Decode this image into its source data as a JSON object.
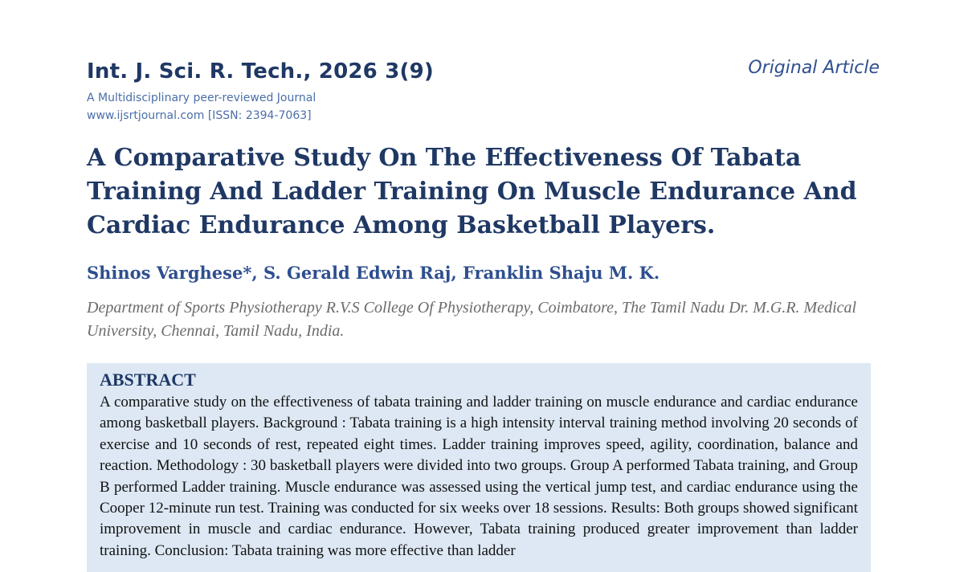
{
  "header": {
    "journal_title": "Int. J. Sci. R. Tech., 2026 3(9)",
    "journal_subtitle": "A Multidisciplinary peer-reviewed Journal",
    "journal_url_issn": "www.ijsrtjournal.com [ISSN: 2394-7063]",
    "article_type": "Original Article"
  },
  "paper": {
    "title": "A Comparative Study On The Effectiveness Of Tabata Training And Ladder Training On Muscle Endurance And Cardiac Endurance Among Basketball Players.",
    "authors": "Shinos Varghese*, S. Gerald Edwin Raj, Franklin Shaju M. K.",
    "affiliation": "Department of Sports Physiotherapy R.V.S College Of Physiotherapy, Coimbatore, The Tamil Nadu Dr. M.G.R. Medical University, Chennai, Tamil Nadu, India."
  },
  "abstract": {
    "heading": "ABSTRACT",
    "text": "A comparative study on the effectiveness of tabata training and ladder training on muscle endurance and cardiac endurance among basketball players. Background : Tabata training is a high intensity interval training method involving 20 seconds of exercise and 10 seconds of rest, repeated eight times. Ladder training improves speed, agility, coordination, balance and reaction. Methodology : 30 basketball players were divided into two groups. Group A performed Tabata training, and Group B performed Ladder training. Muscle endurance was assessed using the vertical jump test, and cardiac endurance using the Cooper 12-minute run test. Training was conducted for six weeks over 18 sessions. Results: Both groups showed significant improvement in muscle and cardiac endurance. However, Tabata training produced greater improvement than ladder training. Conclusion: Tabata training was more effective than ladder"
  }
}
